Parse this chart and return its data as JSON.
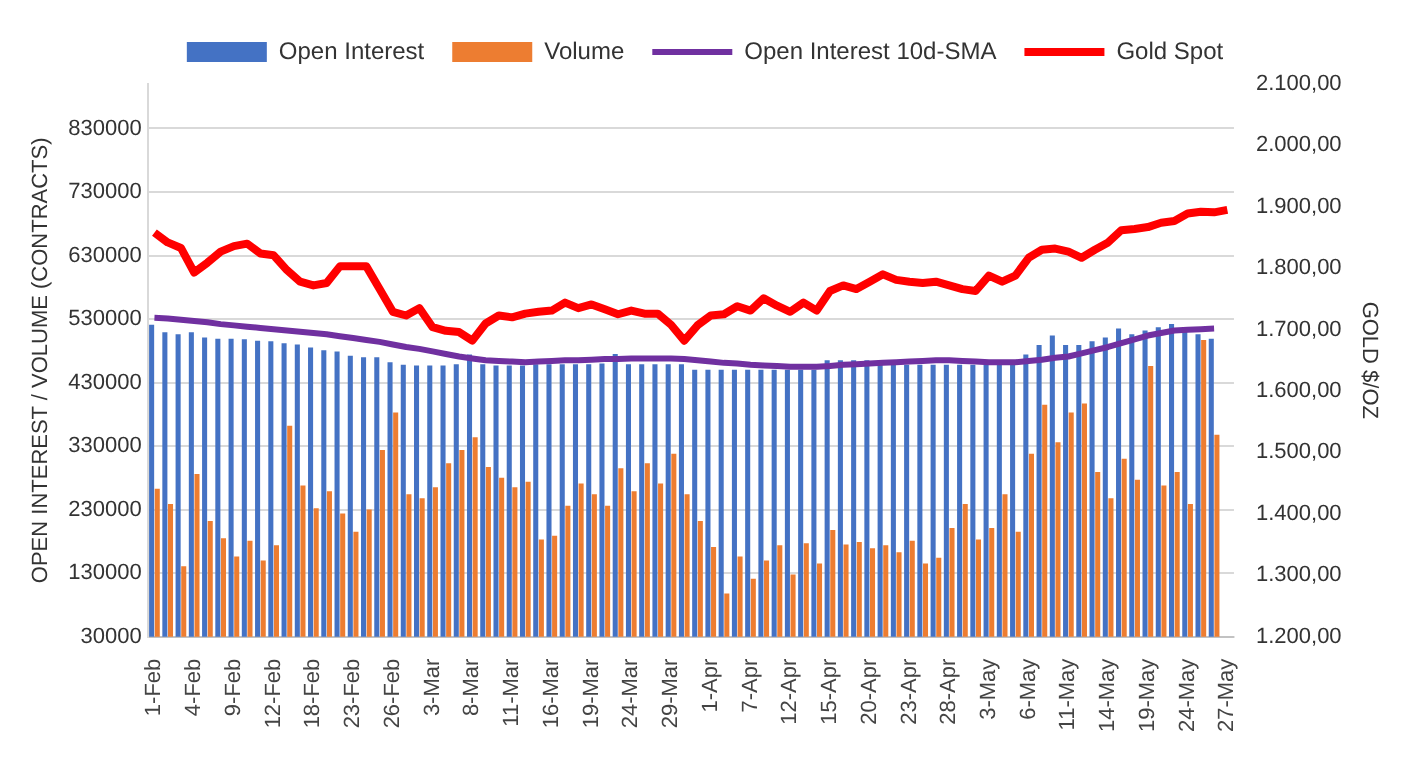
{
  "chart_data": {
    "type": "bar",
    "ylabel": "OPEN INTEREST / VOLUME (CONTRACTS)",
    "y2label": "GOLD $/OZ",
    "categories": [
      "1-Feb",
      null,
      null,
      "4-Feb",
      null,
      null,
      "9-Feb",
      null,
      null,
      "12-Feb",
      null,
      null,
      "18-Feb",
      null,
      null,
      "23-Feb",
      null,
      null,
      "26-Feb",
      null,
      null,
      "3-Mar",
      null,
      null,
      "8-Mar",
      null,
      null,
      "11-Mar",
      null,
      null,
      "16-Mar",
      null,
      null,
      "19-Mar",
      null,
      null,
      "24-Mar",
      null,
      null,
      "29-Mar",
      null,
      null,
      "1-Apr",
      null,
      null,
      "7-Apr",
      null,
      null,
      "12-Apr",
      null,
      null,
      "15-Apr",
      null,
      null,
      "20-Apr",
      null,
      null,
      "23-Apr",
      null,
      null,
      "28-Apr",
      null,
      null,
      "3-May",
      null,
      null,
      "6-May",
      null,
      null,
      "11-May",
      null,
      null,
      "14-May",
      null,
      null,
      "19-May",
      null,
      null,
      "24-May",
      null,
      null,
      "27-May"
    ],
    "series": [
      {
        "name": "Open Interest",
        "color": "#4472c4",
        "values": [
          521000,
          509000,
          506000,
          509000,
          501000,
          499000,
          499000,
          498000,
          496000,
          495000,
          492000,
          490000,
          485000,
          481000,
          479000,
          472000,
          470000,
          470000,
          462000,
          458000,
          457000,
          457000,
          457000,
          459000,
          474000,
          459000,
          457000,
          457000,
          457000,
          459000,
          459000,
          459000,
          459000,
          459000,
          460000,
          475000,
          459000,
          459000,
          459000,
          459000,
          459000,
          450000,
          450000,
          450000,
          450000,
          450000,
          450000,
          450000,
          450000,
          450000,
          450000,
          465000,
          465000,
          465000,
          465000,
          465000,
          458000,
          458000,
          458000,
          458000,
          458000,
          458000,
          458000,
          458000,
          458000,
          458000,
          474000,
          489000,
          504000,
          489000,
          489000,
          495000,
          501000,
          515000,
          506000,
          512000,
          517000,
          522000,
          517000,
          506000,
          499000,
          null
        ]
      },
      {
        "name": "Volume",
        "color": "#ed7d31",
        "values": [
          263000,
          239000,
          141000,
          286000,
          212000,
          185000,
          156000,
          181000,
          150000,
          174000,
          362000,
          268000,
          232000,
          259000,
          224000,
          195000,
          230000,
          324000,
          383000,
          254000,
          248000,
          265000,
          303000,
          324000,
          344000,
          297000,
          280000,
          265000,
          274000,
          183000,
          189000,
          236000,
          271000,
          254000,
          236000,
          295000,
          259000,
          303000,
          271000,
          318000,
          254000,
          212000,
          171000,
          98000,
          156000,
          121000,
          150000,
          174000,
          128000,
          177000,
          145000,
          198000,
          175000,
          179000,
          169000,
          174000,
          163000,
          181000,
          145000,
          154000,
          201000,
          239000,
          183000,
          201000,
          254000,
          195000,
          318000,
          395000,
          336000,
          383000,
          397000,
          289000,
          248000,
          310000,
          277000,
          456000,
          268000,
          289000,
          239000,
          497000,
          348000,
          null
        ]
      },
      {
        "name": "Open Interest 10d-SMA",
        "type": "line",
        "color": "#7030a0",
        "values": [
          532000,
          531000,
          529000,
          527000,
          525000,
          522000,
          520000,
          518000,
          516000,
          514000,
          512000,
          510000,
          508000,
          506000,
          503000,
          500000,
          497000,
          494000,
          490000,
          486000,
          483000,
          479000,
          475000,
          471000,
          468000,
          465000,
          464000,
          463000,
          462000,
          463000,
          464000,
          465000,
          465000,
          466000,
          467000,
          467000,
          468000,
          468000,
          468000,
          468000,
          467000,
          465000,
          463000,
          461000,
          460000,
          458000,
          457000,
          456000,
          455000,
          455000,
          455000,
          456000,
          458000,
          459000,
          460000,
          461000,
          462000,
          463000,
          464000,
          465000,
          465000,
          464000,
          463000,
          462000,
          462000,
          462000,
          464000,
          466000,
          469000,
          471000,
          476000,
          481000,
          486000,
          492000,
          498000,
          504000,
          508000,
          512000,
          513000,
          514000,
          515000,
          null
        ]
      },
      {
        "name": "Gold Spot",
        "type": "line",
        "axis": "y2",
        "color": "#ff0000",
        "values": [
          1858,
          1842,
          1833,
          1793,
          1809,
          1827,
          1836,
          1840,
          1824,
          1821,
          1797,
          1778,
          1772,
          1776,
          1803,
          1803,
          1803,
          1766,
          1729,
          1723,
          1735,
          1704,
          1698,
          1696,
          1682,
          1710,
          1723,
          1720,
          1726,
          1729,
          1731,
          1744,
          1735,
          1741,
          1733,
          1725,
          1731,
          1726,
          1726,
          1708,
          1682,
          1707,
          1723,
          1725,
          1738,
          1731,
          1751,
          1739,
          1729,
          1744,
          1731,
          1763,
          1772,
          1766,
          1778,
          1790,
          1781,
          1778,
          1776,
          1778,
          1772,
          1766,
          1763,
          1788,
          1778,
          1788,
          1817,
          1830,
          1832,
          1827,
          1817,
          1830,
          1842,
          1862,
          1864,
          1867,
          1874,
          1877,
          1889,
          1892,
          1891,
          1895
        ]
      }
    ],
    "ylim": [
      30000,
      900000
    ],
    "yticks": [
      30000,
      130000,
      230000,
      330000,
      430000,
      530000,
      630000,
      730000,
      830000
    ],
    "y2lim": [
      1200,
      2100
    ],
    "y2ticks": [
      {
        "value": 1200,
        "label": "1.200,00"
      },
      {
        "value": 1300,
        "label": "1.300,00"
      },
      {
        "value": 1400,
        "label": "1.400,00"
      },
      {
        "value": 1500,
        "label": "1.500,00"
      },
      {
        "value": 1600,
        "label": "1.600,00"
      },
      {
        "value": 1700,
        "label": "1.700,00"
      },
      {
        "value": 1800,
        "label": "1.800,00"
      },
      {
        "value": 1900,
        "label": "1.900,00"
      },
      {
        "value": 2000,
        "label": "2.000,00"
      },
      {
        "value": 2100,
        "label": "2.100,00"
      }
    ],
    "grid": "y",
    "legend": "top"
  }
}
